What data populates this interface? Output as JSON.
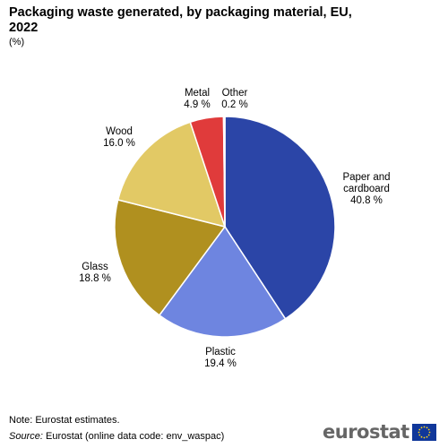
{
  "title": "Packaging waste generated, by packaging material, EU, 2022",
  "subtitle": "(%)",
  "note": "Note: Eurostat estimates.",
  "source": {
    "label": "Source:",
    "text": "Eurostat (online data code: env_waspac)"
  },
  "logo": {
    "text": "eurostat"
  },
  "colors": {
    "paper": "#2b45a7",
    "plastic": "#6e85e0",
    "glass": "#b0901f",
    "wood": "#e2c965",
    "metal": "#e03b3b",
    "other": "#8c8c8c"
  },
  "chart_data": {
    "type": "pie",
    "title": "Packaging waste generated, by packaging material, EU, 2022",
    "unit": "%",
    "slices": [
      {
        "name": "Paper and cardboard",
        "value": 40.8,
        "label": "40.8 %"
      },
      {
        "name": "Plastic",
        "value": 19.4,
        "label": "19.4 %"
      },
      {
        "name": "Glass",
        "value": 18.8,
        "label": "18.8 %"
      },
      {
        "name": "Wood",
        "value": 16.0,
        "label": "16.0 %"
      },
      {
        "name": "Metal",
        "value": 4.9,
        "label": "4.9 %"
      },
      {
        "name": "Other",
        "value": 0.2,
        "label": "0.2 %"
      }
    ],
    "start": "12 o'clock",
    "direction": "clockwise"
  }
}
